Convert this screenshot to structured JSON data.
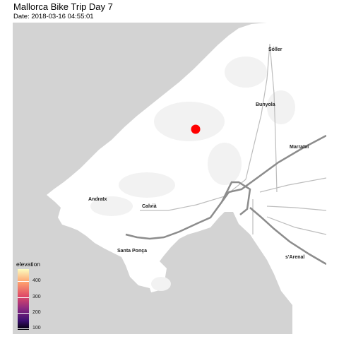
{
  "title": "Mallorca Bike Trip Day 7",
  "subtitle": "Date: 2018-03-16 04:55:01",
  "places": {
    "soller": "Sóller",
    "bunyola": "Bunyola",
    "marratxi": "Marratxi",
    "andratx": "Andratx",
    "calvia": "Calvià",
    "santa_ponca": "Santa Ponça",
    "sarenal": "s'Arenal"
  },
  "legend": {
    "title": "elevation",
    "ticks": [
      "400",
      "300",
      "200",
      "100"
    ]
  },
  "colors": {
    "sea": "#d3d3d3",
    "land": "#ffffff",
    "marker": "#ff0000"
  }
}
